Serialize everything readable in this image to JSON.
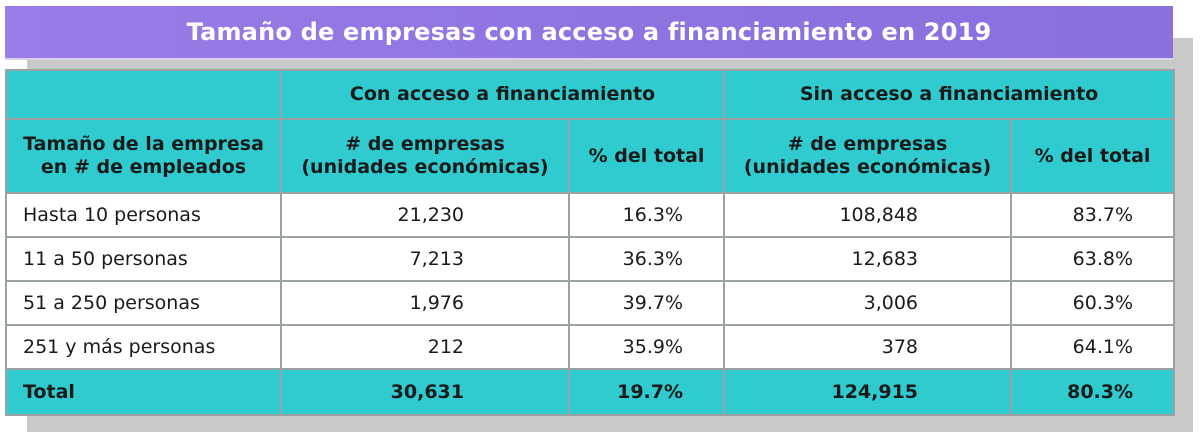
{
  "title": "Tamaño de empresas con acceso a financiamiento en 2019",
  "groups": {
    "con": "Con acceso a financiamiento",
    "sin": "Sin acceso a financiamiento"
  },
  "columns": {
    "size": [
      "Tamaño de la empresa",
      "en # de empleados"
    ],
    "count": [
      "# de empresas",
      "(unidades económicas)"
    ],
    "pct": "% del total"
  },
  "rows": [
    {
      "label": "Hasta 10 personas",
      "con_n": "21,230",
      "con_pct": "16.3%",
      "sin_n": "108,848",
      "sin_pct": "83.7%"
    },
    {
      "label": "11 a 50 personas",
      "con_n": "7,213",
      "con_pct": "36.3%",
      "sin_n": "12,683",
      "sin_pct": "63.8%"
    },
    {
      "label": "51 a 250 personas",
      "con_n": "1,976",
      "con_pct": "39.7%",
      "sin_n": "3,006",
      "sin_pct": "60.3%"
    },
    {
      "label": "251 y más personas",
      "con_n": "212",
      "con_pct": "35.9%",
      "sin_n": "378",
      "sin_pct": "64.1%"
    }
  ],
  "total": {
    "label": "Total",
    "con_n": "30,631",
    "con_pct": "19.7%",
    "sin_n": "124,915",
    "sin_pct": "80.3%"
  },
  "colors": {
    "title_bg": "#8d72e0",
    "header_bg": "#2fcbcf",
    "border": "#9aa2a6"
  }
}
